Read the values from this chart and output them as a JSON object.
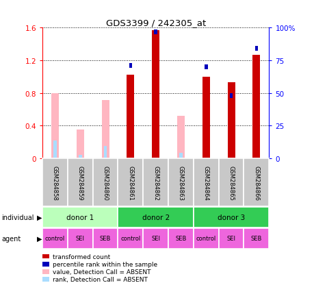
{
  "title": "GDS3399 / 242305_at",
  "samples": [
    "GSM284858",
    "GSM284859",
    "GSM284860",
    "GSM284861",
    "GSM284862",
    "GSM284863",
    "GSM284864",
    "GSM284865",
    "GSM284866"
  ],
  "red_bars": [
    0,
    0,
    0,
    1.02,
    1.57,
    0,
    1.0,
    0.93,
    1.27
  ],
  "blue_dots_val": [
    0,
    0,
    0,
    1.14,
    1.55,
    0,
    1.12,
    0.77,
    1.35
  ],
  "pink_bars": [
    0.8,
    0.35,
    0.71,
    0,
    0,
    0.52,
    0,
    0,
    0
  ],
  "lightblue_dots": [
    0.22,
    0.04,
    0.15,
    0,
    0,
    0.07,
    0,
    0,
    0
  ],
  "red_bar_width": 0.3,
  "pink_bar_width": 0.3,
  "blue_dot_size": 60,
  "ylim_left": [
    0,
    1.6
  ],
  "ylim_right": [
    0,
    100
  ],
  "yticks_left": [
    0,
    0.4,
    0.8,
    1.2,
    1.6
  ],
  "ytick_labels_left": [
    "0",
    "0.4",
    "0.8",
    "1.2",
    "1.6"
  ],
  "yticks_right": [
    0,
    25,
    50,
    75,
    100
  ],
  "ytick_labels_right": [
    "0",
    "25",
    "50",
    "75",
    "100%"
  ],
  "bar_color_red": "#CC0000",
  "bar_color_blue": "#0000BB",
  "bar_color_pink": "#FFB6C1",
  "bar_color_lightblue": "#AADDFF",
  "sample_bg_color": "#C8C8C8",
  "donor_colors": [
    "#BBFFBB",
    "#33CC55",
    "#33CC55"
  ],
  "donor_labels": [
    "donor 1",
    "donor 2",
    "donor 3"
  ],
  "donor_ranges": [
    [
      0,
      3
    ],
    [
      3,
      6
    ],
    [
      6,
      9
    ]
  ],
  "agents": [
    "control",
    "SEI",
    "SEB",
    "control",
    "SEI",
    "SEB",
    "control",
    "SEI",
    "SEB"
  ],
  "agent_color": "#EE66DD",
  "legend_items": [
    {
      "label": "transformed count",
      "color": "#CC0000"
    },
    {
      "label": "percentile rank within the sample",
      "color": "#0000BB"
    },
    {
      "label": "value, Detection Call = ABSENT",
      "color": "#FFB6C1"
    },
    {
      "label": "rank, Detection Call = ABSENT",
      "color": "#AADDFF"
    }
  ]
}
